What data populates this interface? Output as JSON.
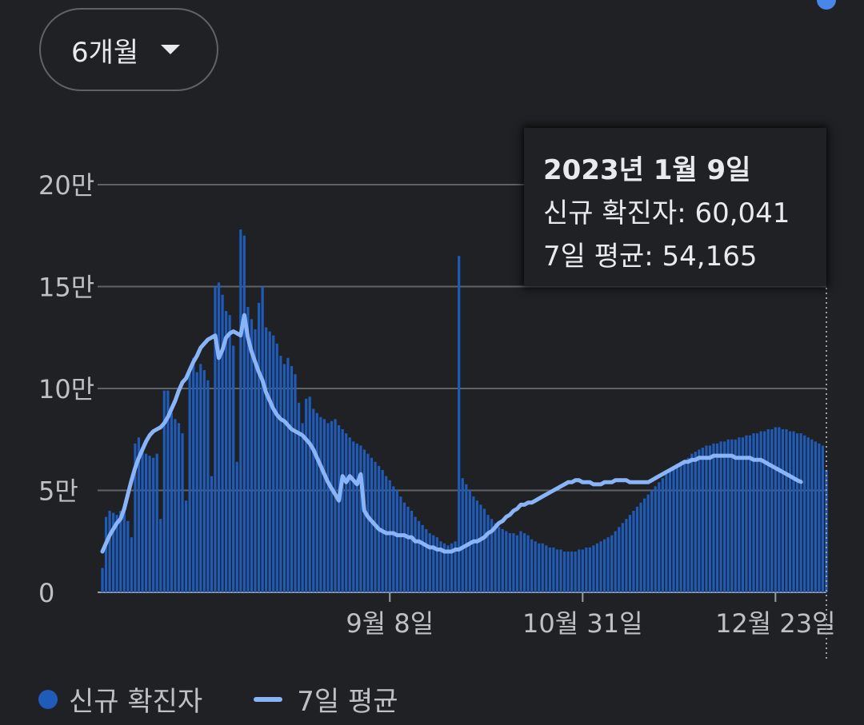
{
  "range_selector": {
    "label": "6개월"
  },
  "tooltip": {
    "date": "2023년 1월 9일",
    "new_cases_text": "신규 확진자: 60,041",
    "avg_text": "7일 평균: 54,165"
  },
  "legend": {
    "bar_label": "신규 확진자",
    "line_label": "7일 평균"
  },
  "colors": {
    "background": "#202124",
    "bar": "#1f5bb8",
    "line": "#8ab4f8",
    "text": "#bdc1c6",
    "grid": "#5f6368"
  },
  "chart_data": {
    "type": "bar",
    "y_ticks": [
      "0",
      "5만",
      "10만",
      "15만",
      "20만"
    ],
    "y_tick_values": [
      0,
      50000,
      100000,
      150000,
      200000
    ],
    "ylim": [
      0,
      200000
    ],
    "x_tick_labels": [
      "9월 8일",
      "10월 31일",
      "12월 23일"
    ],
    "x_tick_index": [
      79,
      132,
      185
    ],
    "grid": true,
    "legend_position": "bottom",
    "series": [
      {
        "name": "신규 확진자",
        "type": "bar",
        "values": [
          12000,
          37000,
          40000,
          39000,
          38000,
          40000,
          41000,
          35000,
          27000,
          73000,
          76000,
          70000,
          68000,
          67000,
          66000,
          68000,
          36000,
          99000,
          99000,
          88000,
          85000,
          83000,
          78000,
          45000,
          110000,
          115000,
          108000,
          112000,
          109000,
          104000,
          57000,
          150000,
          152000,
          146000,
          138000,
          136000,
          121000,
          64000,
          178000,
          175000,
          140000,
          134000,
          129000,
          142000,
          150000,
          130000,
          128000,
          126000,
          122000,
          116000,
          112000,
          115000,
          111000,
          107000,
          93000,
          83000,
          95000,
          96000,
          90000,
          88000,
          86000,
          85000,
          83000,
          84000,
          85000,
          82000,
          80000,
          78000,
          76000,
          74000,
          73000,
          72000,
          70000,
          68000,
          66000,
          64000,
          62000,
          60000,
          57000,
          55000,
          52000,
          50000,
          47000,
          44000,
          42000,
          40000,
          37000,
          35000,
          33000,
          31000,
          29000,
          28000,
          27000,
          25000,
          24000,
          23000,
          24000,
          25000,
          165000,
          56000,
          53000,
          50000,
          47000,
          45000,
          43000,
          41000,
          38000,
          36000,
          34000,
          32000,
          31000,
          30000,
          29000,
          29000,
          28000,
          30000,
          29000,
          28000,
          26000,
          25000,
          24000,
          24000,
          23000,
          22000,
          22000,
          21000,
          21000,
          20000,
          20000,
          20000,
          20000,
          21000,
          21000,
          22000,
          22000,
          23000,
          24000,
          25000,
          26000,
          27000,
          28000,
          30000,
          32000,
          34000,
          36000,
          38000,
          40000,
          42000,
          44000,
          46000,
          48000,
          50000,
          52000,
          54000,
          56000,
          58000,
          60000,
          62000,
          63000,
          64000,
          65000,
          66000,
          68000,
          69000,
          70000,
          71000,
          72000,
          72000,
          73000,
          73000,
          74000,
          74000,
          75000,
          75000,
          75000,
          76000,
          76000,
          77000,
          77000,
          78000,
          78000,
          79000,
          79000,
          80000,
          80000,
          81000,
          81000,
          80000,
          80000,
          79000,
          79000,
          78000,
          78000,
          77000,
          76000,
          75000,
          74000,
          73000,
          72000,
          60041
        ]
      },
      {
        "name": "7일 평균",
        "type": "line",
        "values": [
          20000,
          24000,
          28000,
          31000,
          34000,
          36000,
          41000,
          48000,
          55000,
          61000,
          66000,
          70000,
          74000,
          77000,
          79000,
          80000,
          81000,
          83000,
          86000,
          90000,
          94000,
          99000,
          103000,
          105000,
          109000,
          113000,
          116000,
          120000,
          122000,
          124000,
          125000,
          126000,
          115000,
          119000,
          125000,
          127000,
          128000,
          127000,
          126000,
          136000,
          125000,
          118000,
          113000,
          108000,
          104000,
          98000,
          94000,
          90000,
          87000,
          85000,
          84000,
          82000,
          80000,
          79000,
          78000,
          77000,
          75000,
          73000,
          70000,
          66000,
          62000,
          58000,
          54000,
          51000,
          48000,
          45000,
          57000,
          54000,
          57000,
          55000,
          53000,
          58000,
          40000,
          37000,
          35000,
          33000,
          31000,
          30000,
          29000,
          29000,
          29000,
          28000,
          28000,
          28000,
          27000,
          27000,
          25000,
          25000,
          24000,
          23000,
          22000,
          22000,
          21000,
          21000,
          20000,
          20000,
          20000,
          21000,
          21000,
          22000,
          23000,
          24000,
          25000,
          25000,
          26000,
          27000,
          29000,
          30000,
          32000,
          34000,
          35000,
          37000,
          38000,
          40000,
          41000,
          43000,
          43000,
          44000,
          44000,
          45000,
          46000,
          47000,
          48000,
          49000,
          50000,
          51000,
          52000,
          53000,
          54000,
          54000,
          55000,
          55000,
          54000,
          54000,
          54000,
          53000,
          53000,
          53000,
          54000,
          54000,
          54000,
          55000,
          55000,
          55000,
          55000,
          54000,
          54000,
          54000,
          54000,
          54000,
          54000,
          55000,
          56000,
          57000,
          58000,
          59000,
          60000,
          61000,
          62000,
          63000,
          64000,
          64000,
          65000,
          65000,
          66000,
          66000,
          66000,
          66000,
          67000,
          67000,
          67000,
          67000,
          67000,
          67000,
          66000,
          66000,
          66000,
          66000,
          66000,
          65000,
          65000,
          65000,
          64000,
          63000,
          62000,
          61000,
          60000,
          59000,
          58000,
          57000,
          56000,
          55000,
          54165
        ]
      }
    ],
    "highlighted_point": {
      "date": "2023년 1월 9일",
      "new_cases": 60041,
      "avg": 54165
    }
  }
}
